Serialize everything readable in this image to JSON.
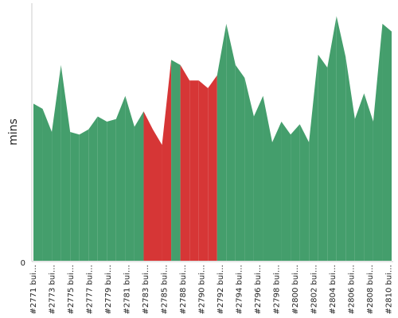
{
  "chart_data": {
    "type": "area",
    "title": "",
    "xlabel": "",
    "ylabel": "mins",
    "y_ticks": [
      "0"
    ],
    "ylim": [
      0,
      100
    ],
    "grid": false,
    "colors": {
      "success": "#449e6c",
      "failure": "#d63636",
      "axis": "#cccccc"
    },
    "x_tick_labels": [
      "#2771 bui…",
      "#2773 bui…",
      "#2775 bui…",
      "#2777 bui…",
      "#2779 bui…",
      "#2781 bui…",
      "#2783 bui…",
      "#2785 bui…",
      "#2788 bui…",
      "#2790 bui…",
      "#2792 bui…",
      "#2794 bui…",
      "#2796 bui…",
      "#2798 bui…",
      "#2800 bui…",
      "#2802 bui…",
      "#2804 bui…",
      "#2806 bui…",
      "#2808 bui…",
      "#2810 bui…"
    ],
    "series": [
      {
        "values": [
          61,
          59,
          50,
          76,
          50,
          49,
          51,
          56,
          54,
          55,
          64,
          52,
          58,
          51,
          45,
          78,
          76,
          70,
          70,
          67,
          72,
          92,
          76,
          71,
          56,
          64,
          46,
          54,
          49,
          53,
          46,
          80,
          75,
          95,
          79,
          55,
          65,
          54,
          92,
          89
        ],
        "status": [
          "success",
          "success",
          "success",
          "success",
          "success",
          "success",
          "success",
          "success",
          "success",
          "success",
          "success",
          "success",
          "failure",
          "failure",
          "failure",
          "success",
          "failure",
          "failure",
          "failure",
          "failure",
          "success",
          "success",
          "success",
          "success",
          "success",
          "success",
          "success",
          "success",
          "success",
          "success",
          "success",
          "success",
          "success",
          "success",
          "success",
          "success",
          "success",
          "success",
          "success",
          "success"
        ]
      }
    ]
  }
}
